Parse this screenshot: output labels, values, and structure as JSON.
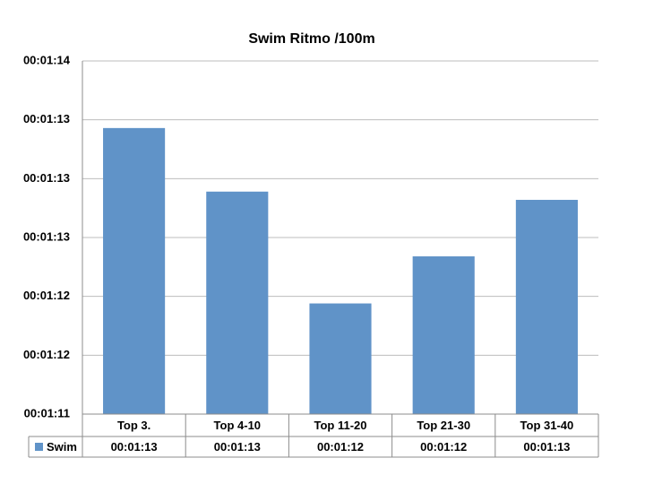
{
  "chart_data": {
    "type": "bar",
    "title": "Swim Ritmo /100m",
    "categories": [
      "Top 3.",
      "Top 4-10",
      "Top 11-20",
      "Top 21-30",
      "Top 31-40"
    ],
    "series": [
      {
        "name": "Swim",
        "color": "#6093c8",
        "values": [
          73.43,
          72.89,
          71.94,
          72.34,
          72.82
        ],
        "value_labels": [
          "00:01:13",
          "00:01:13",
          "00:01:12",
          "00:01:12",
          "00:01:13"
        ]
      }
    ],
    "ylim": [
      71,
      74
    ],
    "yticks": [
      {
        "value": 71,
        "label": "00:01:11"
      },
      {
        "value": 71.5,
        "label": "00:01:12"
      },
      {
        "value": 72,
        "label": "00:01:12"
      },
      {
        "value": 72.5,
        "label": "00:01:13"
      },
      {
        "value": 73,
        "label": "00:01:13"
      },
      {
        "value": 73.5,
        "label": "00:01:13"
      },
      {
        "value": 74,
        "label": "00:01:14"
      }
    ],
    "grid": true
  }
}
